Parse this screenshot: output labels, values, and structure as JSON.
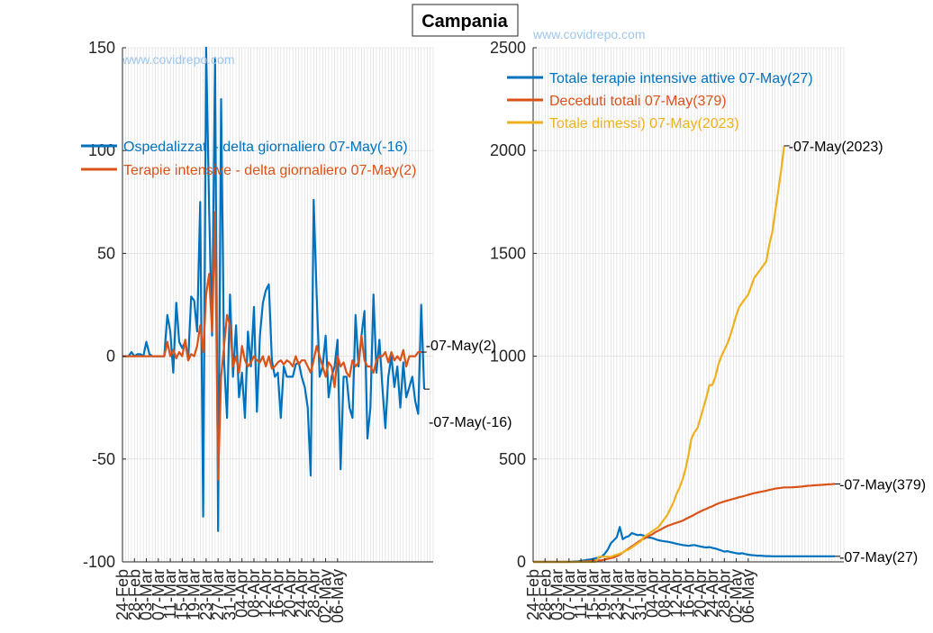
{
  "page": {
    "title": "Campania",
    "watermark": "www.covidrepo.com"
  },
  "colors": {
    "blue": "#0072BD",
    "orange": "#D95319",
    "yellow": "#EDB120",
    "grid": "#d9d9d9"
  },
  "chart_data": [
    {
      "type": "line",
      "title": "",
      "xlabel": "",
      "ylabel": "",
      "ylim": [
        -100,
        150
      ],
      "yticks": [
        -100,
        -50,
        0,
        50,
        100,
        150
      ],
      "x_start": "24-Feb",
      "x_end": "07-May",
      "xtick_labels": [
        "24-Feb",
        "28-Feb",
        "03-Mar",
        "07-Mar",
        "11-Mar",
        "15-Mar",
        "19-Mar",
        "23-Mar",
        "27-Mar",
        "31-Mar",
        "04-Apr",
        "08-Apr",
        "12-Apr",
        "16-Apr",
        "20-Apr",
        "24-Apr",
        "28-Apr",
        "02-May",
        "06-May"
      ],
      "grid": true,
      "legend_position": "top-left",
      "series": [
        {
          "name": "Ospedalizzati - delta giornaliero 07-May(-16)",
          "color": "#0072BD",
          "end_label": "07-May(-16)",
          "values": [
            0,
            0,
            0,
            2,
            0,
            1,
            1,
            0,
            7,
            1,
            0,
            0,
            0,
            0,
            0,
            20,
            12,
            -8,
            26,
            7,
            4,
            7,
            -2,
            29,
            27,
            12,
            75,
            -78,
            150,
            72,
            10,
            145,
            -85,
            125,
            -2,
            -30,
            30,
            -10,
            15,
            -20,
            -8,
            -30,
            12,
            -5,
            24,
            -27,
            10,
            26,
            32,
            35,
            -2,
            -10,
            -8,
            -30,
            -5,
            -10,
            -10,
            -10,
            -4,
            -3,
            -10,
            -15,
            -25,
            -58,
            76,
            30,
            -10,
            -5,
            10,
            -20,
            -10,
            -5,
            8,
            -55,
            -10,
            -10,
            -25,
            -30,
            20,
            -5,
            10,
            22,
            -40,
            -25,
            30,
            -8,
            8,
            -15,
            -35,
            -10,
            0,
            -15,
            -5,
            -25,
            -3,
            -20,
            -15,
            -10,
            -22,
            -28,
            25,
            -16
          ]
        },
        {
          "name": "Terapie intensive - delta giornaliero 07-May(2)",
          "color": "#D95319",
          "end_label": "07-May(2)",
          "values": [
            0,
            0,
            0,
            0,
            0,
            0,
            0,
            0,
            0,
            0,
            0,
            0,
            0,
            0,
            0,
            7,
            0,
            3,
            -1,
            2,
            0,
            8,
            -2,
            1,
            0,
            5,
            15,
            2,
            30,
            40,
            12,
            70,
            -60,
            -10,
            5,
            20,
            15,
            -5,
            0,
            -8,
            5,
            -2,
            -5,
            -3,
            0,
            -2,
            -3,
            0,
            -5,
            0,
            -6,
            -5,
            -3,
            -2,
            -4,
            -2,
            -3,
            -5,
            0,
            -4,
            -2,
            -2,
            -5,
            -8,
            -2,
            5,
            0,
            -5,
            -10,
            -3,
            -5,
            -15,
            0,
            -5,
            -3,
            -8,
            -10,
            -2,
            -5,
            -3,
            10,
            -2,
            -5,
            -5,
            -8,
            -2,
            0,
            0,
            2,
            -3,
            2,
            -2,
            0,
            -2,
            3,
            -5,
            0,
            0,
            0,
            2,
            2
          ]
        }
      ]
    },
    {
      "type": "line",
      "title": "",
      "xlabel": "",
      "ylabel": "",
      "ylim": [
        0,
        2500
      ],
      "yticks": [
        0,
        500,
        1000,
        1500,
        2000,
        2500
      ],
      "x_start": "24-Feb",
      "x_end": "07-May",
      "xtick_labels": [
        "24-Feb",
        "28-Feb",
        "03-Mar",
        "07-Mar",
        "11-Mar",
        "15-Mar",
        "19-Mar",
        "23-Mar",
        "27-Mar",
        "31-Mar",
        "04-Apr",
        "08-Apr",
        "12-Apr",
        "16-Apr",
        "20-Apr",
        "24-Apr",
        "28-Apr",
        "02-May",
        "06-May"
      ],
      "grid": true,
      "legend_position": "top-left",
      "series": [
        {
          "name": "Totale terapie intensive attive 07-May(27)",
          "color": "#0072BD",
          "end_label": "07-May(27)",
          "values": [
            0,
            0,
            0,
            0,
            0,
            0,
            0,
            0,
            0,
            0,
            0,
            0,
            0,
            1,
            2,
            3,
            5,
            7,
            10,
            12,
            14,
            18,
            20,
            26,
            40,
            60,
            90,
            105,
            120,
            170,
            110,
            120,
            125,
            140,
            135,
            130,
            132,
            128,
            120,
            118,
            115,
            110,
            105,
            102,
            100,
            98,
            95,
            92,
            88,
            85,
            82,
            80,
            78,
            80,
            82,
            78,
            75,
            72,
            70,
            72,
            68,
            65,
            60,
            55,
            50,
            52,
            48,
            45,
            42,
            40,
            42,
            38,
            35,
            33,
            32,
            30,
            30,
            29,
            28,
            28,
            27,
            27,
            27,
            27,
            27,
            27,
            27,
            27,
            27,
            27,
            27,
            27,
            27,
            27,
            27,
            27,
            27,
            27,
            27,
            27,
            27,
            27
          ]
        },
        {
          "name": "Deceduti totali 07-May(379)",
          "color": "#D95319",
          "end_label": "07-May(379)",
          "values": [
            0,
            0,
            0,
            0,
            0,
            0,
            0,
            0,
            0,
            0,
            0,
            0,
            0,
            0,
            0,
            1,
            1,
            2,
            3,
            4,
            5,
            6,
            7,
            8,
            12,
            15,
            18,
            22,
            28,
            35,
            45,
            55,
            65,
            75,
            85,
            95,
            105,
            112,
            120,
            128,
            135,
            145,
            152,
            160,
            168,
            175,
            180,
            185,
            190,
            195,
            200,
            208,
            215,
            222,
            230,
            238,
            245,
            252,
            258,
            265,
            270,
            278,
            284,
            289,
            294,
            298,
            302,
            306,
            310,
            315,
            318,
            322,
            326,
            330,
            334,
            337,
            340,
            343,
            346,
            350,
            353,
            356,
            358,
            360,
            362,
            362,
            362,
            363,
            364,
            365,
            366,
            368,
            370,
            371,
            372,
            373,
            374,
            375,
            376,
            377,
            378,
            379
          ]
        },
        {
          "name": "Totale dimessi) 07-May(2023)",
          "color": "#EDB120",
          "end_label": "07-May(2023)",
          "values": [
            0,
            0,
            0,
            0,
            0,
            0,
            0,
            0,
            0,
            0,
            0,
            0,
            0,
            0,
            0,
            0,
            0,
            0,
            0,
            0,
            0,
            0,
            25,
            25,
            25,
            25,
            25,
            30,
            35,
            40,
            45,
            55,
            60,
            70,
            80,
            90,
            100,
            120,
            130,
            140,
            150,
            160,
            170,
            190,
            210,
            230,
            260,
            290,
            330,
            360,
            400,
            450,
            520,
            600,
            630,
            650,
            700,
            750,
            800,
            860,
            860,
            900,
            960,
            1000,
            1030,
            1060,
            1100,
            1150,
            1200,
            1240,
            1260,
            1280,
            1300,
            1340,
            1380,
            1400,
            1420,
            1440,
            1460,
            1540,
            1600,
            1700,
            1800,
            1900,
            2023
          ]
        }
      ]
    }
  ]
}
